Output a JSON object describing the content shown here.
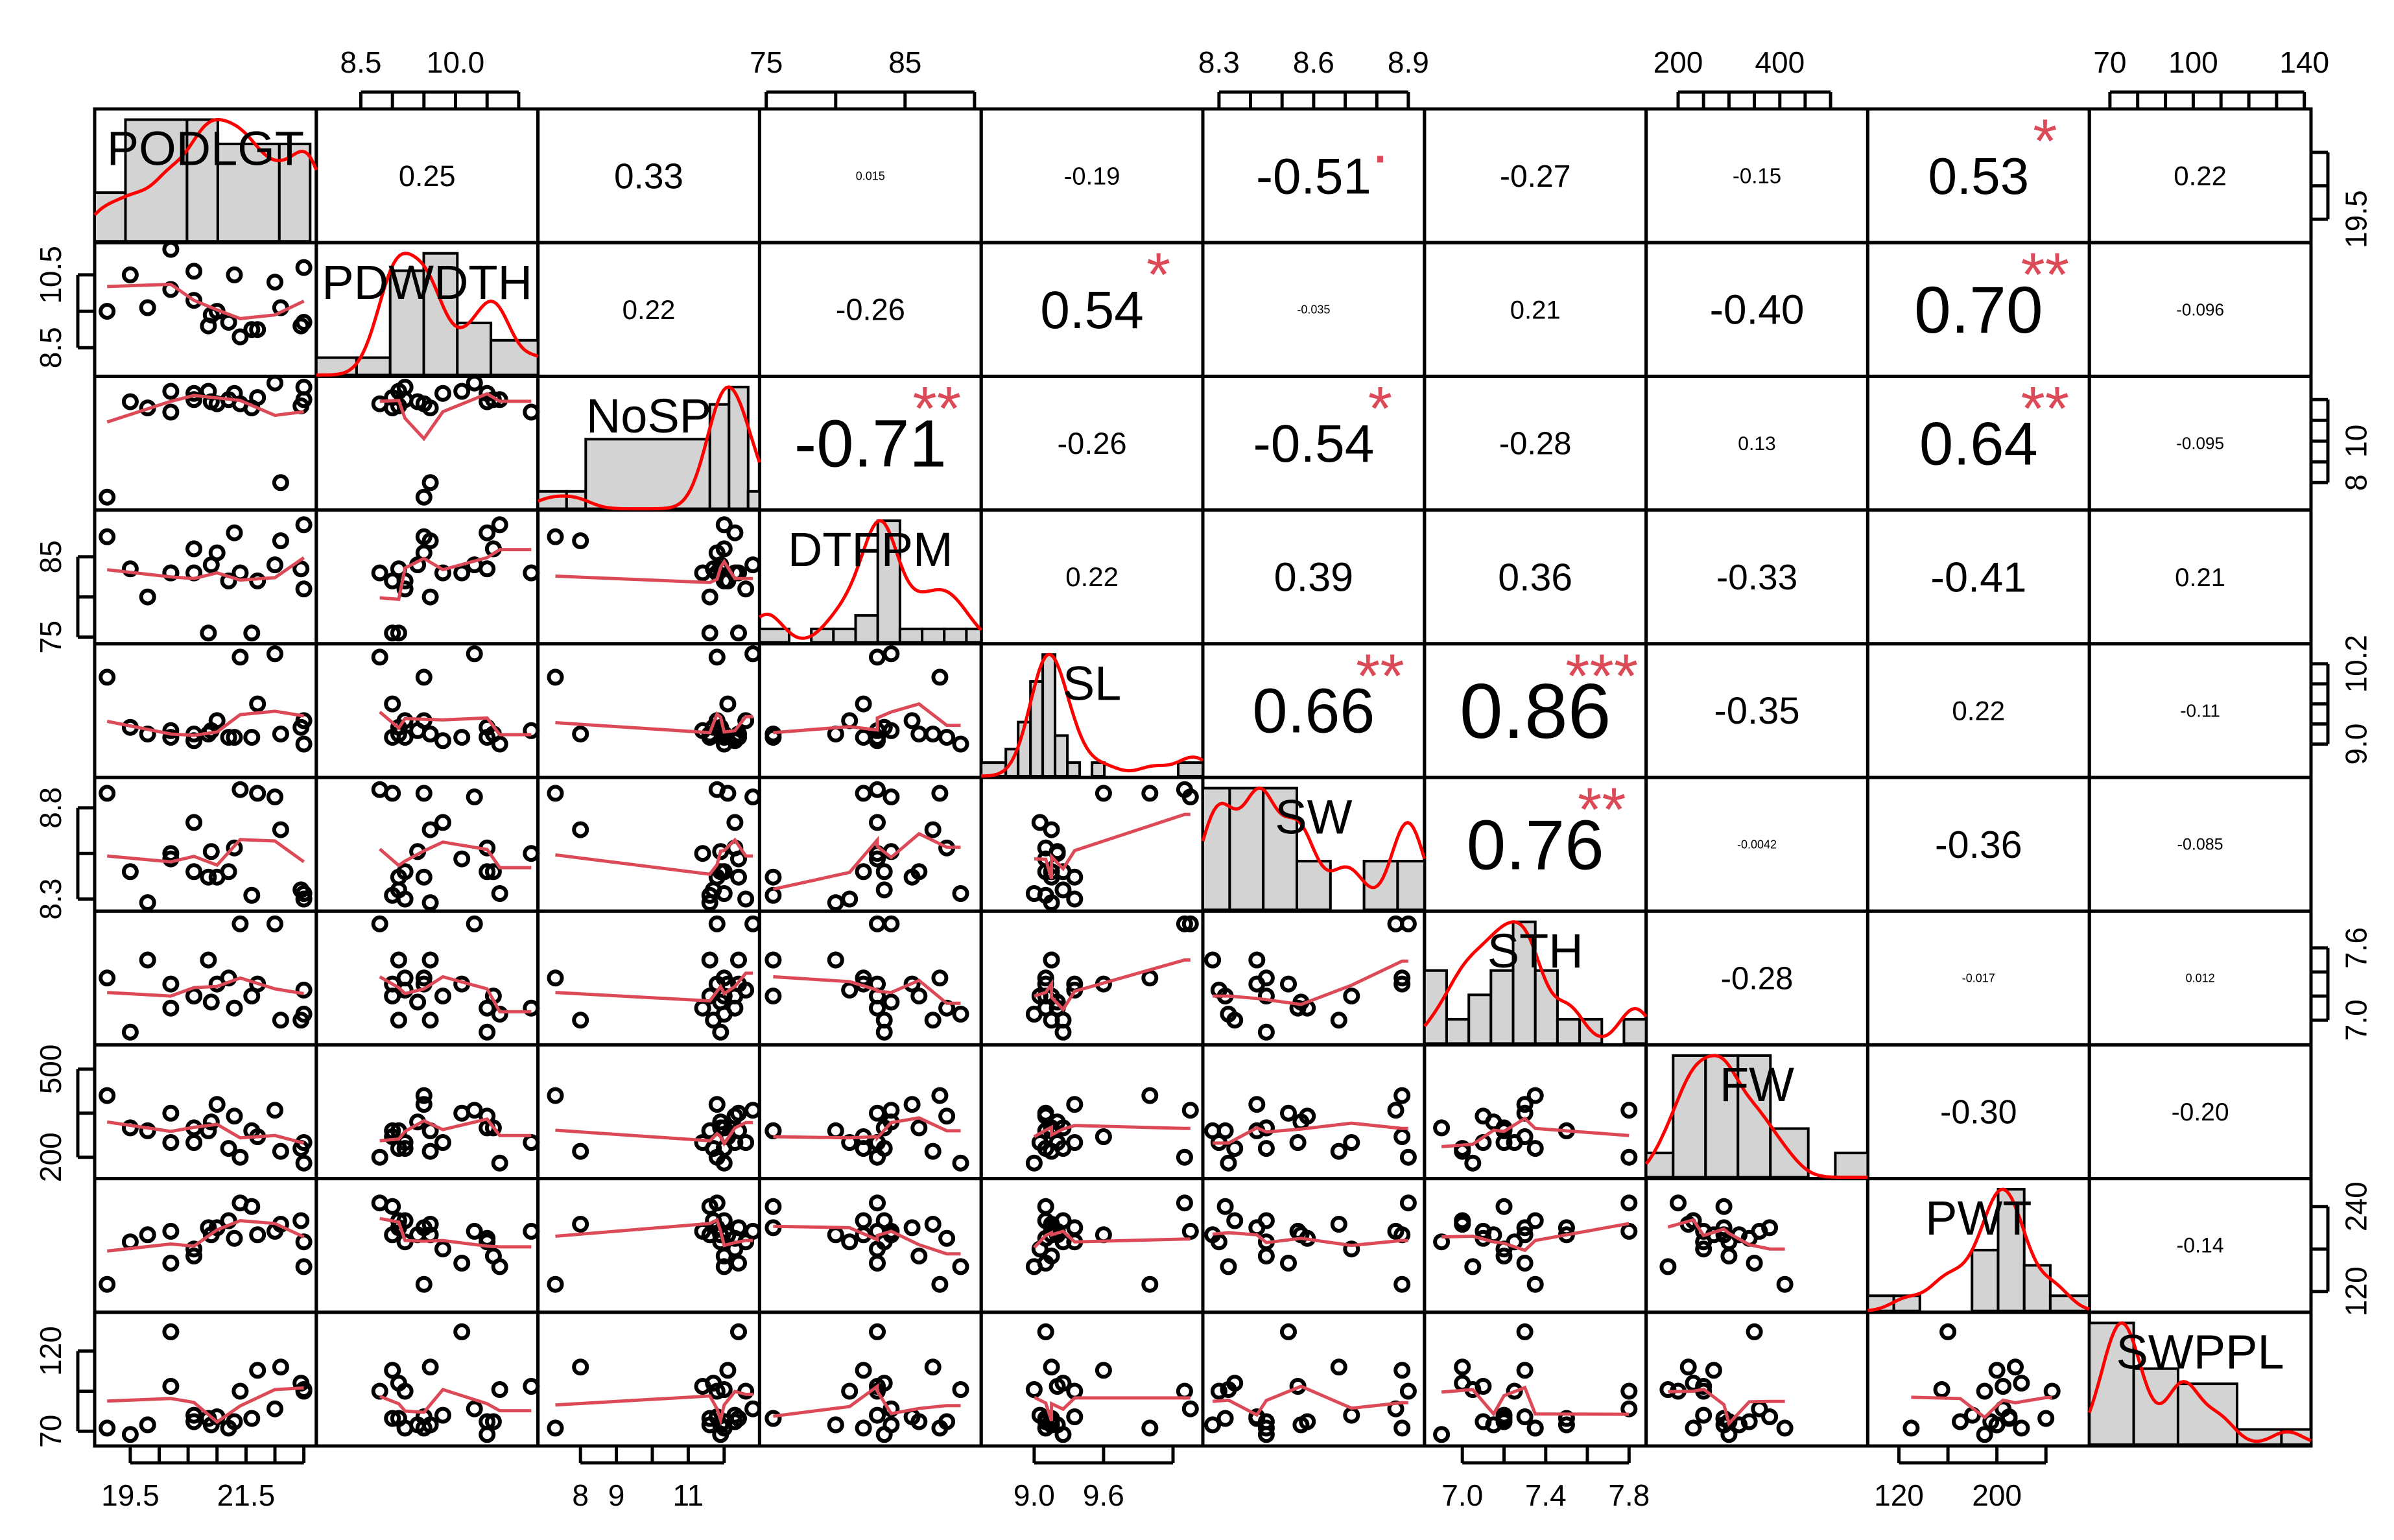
{
  "chart_data": {
    "type": "scatter-matrix",
    "title": "",
    "variables": [
      "PODLGT",
      "PDWDTH",
      "NoSP",
      "DTFPM",
      "SL",
      "SW",
      "STH",
      "FW",
      "PWT",
      "SWPPL"
    ],
    "ranges": [
      [
        19.0,
        22.6
      ],
      [
        7.9,
        11.2
      ],
      [
        7.0,
        12.8
      ],
      [
        75.0,
        90.0
      ],
      [
        8.6,
        10.4
      ],
      [
        8.27,
        8.93
      ],
      [
        6.85,
        7.85
      ],
      [
        150,
        560
      ],
      [
        100,
        270
      ],
      [
        65,
        140
      ]
    ],
    "top_axis": [
      {
        "var": 1,
        "ticks": [
          8.5,
          9.0,
          9.5,
          10.0,
          10.5,
          11.0
        ],
        "labels": [
          "8.5",
          "10.0"
        ]
      },
      {
        "var": 3,
        "ticks": [
          75,
          80,
          85,
          90
        ],
        "labels": [
          "75",
          "85"
        ]
      },
      {
        "var": 5,
        "ticks": [
          8.3,
          8.4,
          8.5,
          8.6,
          8.7,
          8.8,
          8.9
        ],
        "labels": [
          "8.3",
          "8.6",
          "8.9"
        ]
      },
      {
        "var": 7,
        "ticks": [
          200,
          250,
          300,
          350,
          400,
          450,
          500
        ],
        "labels": [
          "200",
          "400"
        ]
      },
      {
        "var": 9,
        "ticks": [
          70,
          80,
          90,
          100,
          110,
          120,
          130,
          140
        ],
        "labels": [
          "70",
          "100",
          "140"
        ]
      }
    ],
    "bottom_axis": [
      {
        "var": 0,
        "ticks": [
          19.5,
          20.0,
          20.5,
          21.0,
          21.5,
          22.0,
          22.5
        ],
        "labels": [
          "19.5",
          "21.5"
        ]
      },
      {
        "var": 2,
        "ticks": [
          8,
          9,
          10,
          11,
          12
        ],
        "labels": [
          "8",
          "9",
          "11"
        ]
      },
      {
        "var": 4,
        "ticks": [
          9.0,
          9.6,
          10.2
        ],
        "labels": [
          "9.0",
          "9.6"
        ]
      },
      {
        "var": 6,
        "ticks": [
          7.0,
          7.2,
          7.4,
          7.6,
          7.8
        ],
        "labels": [
          "7.0",
          "7.4",
          "7.8"
        ]
      },
      {
        "var": 8,
        "ticks": [
          120,
          160,
          200,
          240
        ],
        "labels": [
          "120",
          "200"
        ]
      }
    ],
    "left_axis": [
      {
        "var": 1,
        "ticks": [
          8.5,
          9.5,
          10.5
        ],
        "labels": [
          "8.5",
          "10.5"
        ]
      },
      {
        "var": 3,
        "ticks": [
          75,
          80,
          85
        ],
        "labels": [
          "75",
          "85"
        ]
      },
      {
        "var": 5,
        "ticks": [
          8.3,
          8.55,
          8.8
        ],
        "labels": [
          "8.3",
          "8.8"
        ]
      },
      {
        "var": 7,
        "ticks": [
          200,
          350,
          500
        ],
        "labels": [
          "200",
          "500"
        ]
      },
      {
        "var": 9,
        "ticks": [
          70,
          95,
          120
        ],
        "labels": [
          "70",
          "120"
        ]
      }
    ],
    "right_axis": [
      {
        "var": 0,
        "ticks": [
          19.5,
          20.5,
          21.5
        ],
        "labels": [
          "19.5"
        ]
      },
      {
        "var": 2,
        "ticks": [
          8,
          9,
          10,
          11,
          12
        ],
        "labels": [
          "8",
          "10"
        ]
      },
      {
        "var": 4,
        "ticks": [
          9.0,
          9.3,
          9.6,
          9.9,
          10.2
        ],
        "labels": [
          "9.0",
          "10.2"
        ]
      },
      {
        "var": 6,
        "ticks": [
          7.0,
          7.2,
          7.4,
          7.6
        ],
        "labels": [
          "7.0",
          "7.6"
        ]
      },
      {
        "var": 8,
        "ticks": [
          120,
          180,
          240
        ],
        "labels": [
          "120",
          "240"
        ]
      }
    ],
    "correlations": [
      {
        "row": 0,
        "col": 1,
        "text": "0.25",
        "stars": ""
      },
      {
        "row": 0,
        "col": 2,
        "text": "0.33",
        "stars": ""
      },
      {
        "row": 0,
        "col": 3,
        "text": "0.015",
        "stars": ""
      },
      {
        "row": 0,
        "col": 4,
        "text": "-0.19",
        "stars": ""
      },
      {
        "row": 0,
        "col": 5,
        "text": "-0.51",
        "stars": "."
      },
      {
        "row": 0,
        "col": 6,
        "text": "-0.27",
        "stars": ""
      },
      {
        "row": 0,
        "col": 7,
        "text": "-0.15",
        "stars": ""
      },
      {
        "row": 0,
        "col": 8,
        "text": "0.53",
        "stars": "*"
      },
      {
        "row": 0,
        "col": 9,
        "text": "0.22",
        "stars": ""
      },
      {
        "row": 1,
        "col": 2,
        "text": "0.22",
        "stars": ""
      },
      {
        "row": 1,
        "col": 3,
        "text": "-0.26",
        "stars": ""
      },
      {
        "row": 1,
        "col": 4,
        "text": "0.54",
        "stars": "*"
      },
      {
        "row": 1,
        "col": 5,
        "text": "-0.035",
        "stars": ""
      },
      {
        "row": 1,
        "col": 6,
        "text": "0.21",
        "stars": ""
      },
      {
        "row": 1,
        "col": 7,
        "text": "-0.40",
        "stars": ""
      },
      {
        "row": 1,
        "col": 8,
        "text": "0.70",
        "stars": "**"
      },
      {
        "row": 1,
        "col": 9,
        "text": "-0.096",
        "stars": ""
      },
      {
        "row": 2,
        "col": 3,
        "text": "-0.71",
        "stars": "**"
      },
      {
        "row": 2,
        "col": 4,
        "text": "-0.26",
        "stars": ""
      },
      {
        "row": 2,
        "col": 5,
        "text": "-0.54",
        "stars": "*"
      },
      {
        "row": 2,
        "col": 6,
        "text": "-0.28",
        "stars": ""
      },
      {
        "row": 2,
        "col": 7,
        "text": "0.13",
        "stars": ""
      },
      {
        "row": 2,
        "col": 8,
        "text": "0.64",
        "stars": "**"
      },
      {
        "row": 2,
        "col": 9,
        "text": "-0.095",
        "stars": ""
      },
      {
        "row": 3,
        "col": 4,
        "text": "0.22",
        "stars": ""
      },
      {
        "row": 3,
        "col": 5,
        "text": "0.39",
        "stars": ""
      },
      {
        "row": 3,
        "col": 6,
        "text": "0.36",
        "stars": ""
      },
      {
        "row": 3,
        "col": 7,
        "text": "-0.33",
        "stars": ""
      },
      {
        "row": 3,
        "col": 8,
        "text": "-0.41",
        "stars": ""
      },
      {
        "row": 3,
        "col": 9,
        "text": "0.21",
        "stars": ""
      },
      {
        "row": 4,
        "col": 5,
        "text": "0.66",
        "stars": "**"
      },
      {
        "row": 4,
        "col": 6,
        "text": "0.86",
        "stars": "***"
      },
      {
        "row": 4,
        "col": 7,
        "text": "-0.35",
        "stars": ""
      },
      {
        "row": 4,
        "col": 8,
        "text": "0.22",
        "stars": ""
      },
      {
        "row": 4,
        "col": 9,
        "text": "-0.11",
        "stars": ""
      },
      {
        "row": 5,
        "col": 6,
        "text": "0.76",
        "stars": "**"
      },
      {
        "row": 5,
        "col": 7,
        "text": "-0.0042",
        "stars": ""
      },
      {
        "row": 5,
        "col": 8,
        "text": "-0.36",
        "stars": ""
      },
      {
        "row": 5,
        "col": 9,
        "text": "-0.085",
        "stars": ""
      },
      {
        "row": 6,
        "col": 7,
        "text": "-0.28",
        "stars": ""
      },
      {
        "row": 6,
        "col": 8,
        "text": "-0.017",
        "stars": ""
      },
      {
        "row": 6,
        "col": 9,
        "text": "0.012",
        "stars": ""
      },
      {
        "row": 7,
        "col": 8,
        "text": "-0.30",
        "stars": ""
      },
      {
        "row": 7,
        "col": 9,
        "text": "-0.20",
        "stars": ""
      },
      {
        "row": 8,
        "col": 9,
        "text": "-0.14",
        "stars": ""
      }
    ],
    "observations": [
      [
        19.1,
        9.5,
        7.3,
        87.5,
        10.0,
        8.88,
        7.35,
        410,
        130,
        72
      ],
      [
        19.5,
        10.5,
        11.9,
        83.5,
        9.25,
        8.45,
        6.9,
        300,
        190,
        68
      ],
      [
        19.8,
        9.6,
        11.6,
        80.0,
        9.15,
        8.28,
        7.5,
        290,
        200,
        74
      ],
      [
        20.2,
        11.2,
        11.4,
        83.0,
        9.2,
        8.55,
        7.1,
        250,
        205,
        98
      ],
      [
        20.2,
        10.1,
        12.4,
        83.0,
        9.1,
        8.52,
        7.3,
        350,
        160,
        132
      ],
      [
        20.6,
        9.8,
        12.3,
        83.0,
        9.05,
        8.72,
        7.2,
        250,
        180,
        80
      ],
      [
        20.6,
        10.6,
        12.0,
        86.0,
        9.15,
        8.45,
        7.2,
        300,
        170,
        76
      ],
      [
        20.85,
        9.1,
        12.4,
        75.5,
        9.15,
        8.42,
        7.5,
        290,
        210,
        78
      ],
      [
        20.9,
        9.4,
        11.9,
        84.0,
        9.2,
        8.56,
        7.15,
        320,
        200,
        74
      ],
      [
        21.0,
        9.5,
        11.8,
        85.5,
        9.35,
        8.42,
        7.3,
        380,
        210,
        79
      ],
      [
        21.2,
        9.2,
        12.0,
        82.0,
        9.1,
        8.45,
        7.35,
        230,
        220,
        72
      ],
      [
        21.3,
        10.5,
        12.3,
        88.0,
        9.1,
        8.58,
        7.1,
        340,
        195,
        76
      ],
      [
        21.4,
        8.8,
        11.8,
        83.0,
        10.3,
        8.9,
        7.8,
        200,
        245,
        95
      ],
      [
        21.6,
        9.0,
        11.6,
        75.5,
        9.1,
        8.32,
        7.2,
        290,
        240,
        78
      ],
      [
        21.7,
        9.0,
        12.1,
        82.0,
        9.6,
        8.88,
        7.3,
        270,
        200,
        108
      ],
      [
        22.0,
        10.3,
        12.8,
        84.0,
        10.35,
        8.86,
        7.8,
        360,
        205,
        84
      ],
      [
        22.1,
        9.6,
        8.0,
        87.0,
        9.15,
        8.68,
        7.0,
        220,
        215,
        110
      ],
      [
        22.5,
        9.2,
        12.6,
        81.0,
        9.35,
        8.3,
        7.25,
        250,
        190,
        95
      ],
      [
        22.5,
        10.7,
        12.0,
        89.0,
        9.0,
        8.33,
        7.05,
        180,
        155,
        96
      ],
      [
        22.45,
        9.1,
        11.7,
        83.5,
        9.25,
        8.35,
        7.0,
        230,
        220,
        100
      ]
    ],
    "histograms": [
      {
        "breaks": [
          19.0,
          19.5,
          20.5,
          21.0,
          22.0,
          22.5
        ],
        "counts": [
          2,
          5,
          5,
          4,
          4
        ]
      },
      {
        "breaks": [
          7.9,
          8.5,
          9.0,
          9.5,
          10.0,
          10.5,
          11.2
        ],
        "counts": [
          1,
          1,
          6,
          7,
          3,
          2
        ]
      },
      {
        "breaks": [
          7.0,
          7.75,
          8.25,
          11.5,
          12.0,
          12.5,
          12.8
        ],
        "counts": [
          1,
          1,
          4,
          6,
          7,
          1
        ]
      },
      {
        "breaks": [
          75,
          77,
          78.5,
          80,
          81.5,
          83,
          84.5,
          86,
          87.5,
          89,
          90
        ],
        "counts": [
          1,
          0,
          1,
          1,
          2,
          9,
          1,
          1,
          1,
          1
        ]
      },
      {
        "breaks": [
          8.6,
          8.8,
          8.9,
          9.0,
          9.1,
          9.2,
          9.3,
          9.4,
          9.5,
          9.6,
          9.8,
          10.0,
          10.2,
          10.4
        ],
        "counts": [
          1,
          2,
          4,
          7,
          9,
          3,
          1,
          0,
          1,
          0,
          0,
          0,
          1
        ]
      },
      {
        "breaks": [
          8.27,
          8.35,
          8.45,
          8.55,
          8.65,
          8.75,
          8.85,
          8.93
        ],
        "counts": [
          5,
          5,
          5,
          2,
          0,
          2,
          2
        ]
      },
      {
        "breaks": [
          6.85,
          6.95,
          7.05,
          7.15,
          7.25,
          7.35,
          7.45,
          7.55,
          7.65,
          7.75,
          7.85
        ],
        "counts": [
          3,
          1,
          2,
          3,
          5,
          3,
          1,
          1,
          0,
          1
        ]
      },
      {
        "breaks": [
          150,
          200,
          260,
          320,
          380,
          450,
          500,
          560
        ],
        "counts": [
          1,
          5,
          5,
          5,
          2,
          0,
          1
        ]
      },
      {
        "breaks": [
          100,
          120,
          140,
          160,
          180,
          200,
          220,
          240,
          270
        ],
        "counts": [
          1,
          1,
          0,
          0,
          4,
          8,
          3,
          1
        ]
      },
      {
        "breaks": [
          65,
          80,
          95,
          115,
          130,
          140
        ],
        "counts": [
          8,
          5,
          4,
          1,
          1
        ]
      }
    ],
    "grid": false,
    "legend": "none"
  }
}
